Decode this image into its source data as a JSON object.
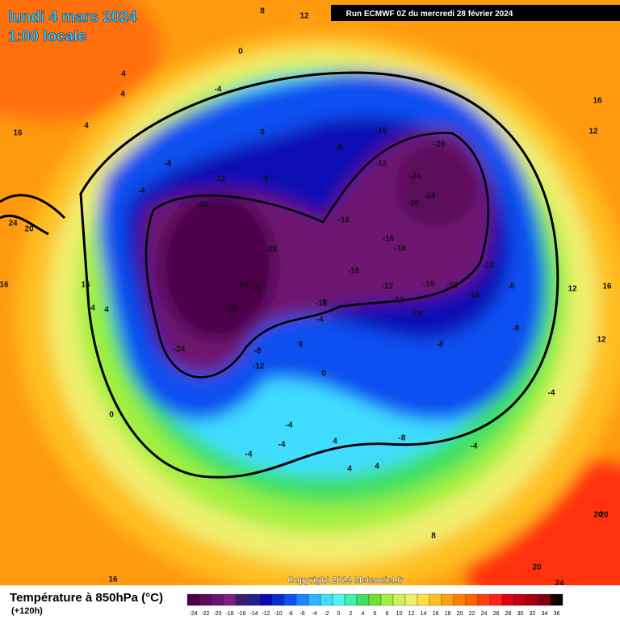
{
  "header": {
    "date": "lundi 4 mars 2024",
    "time": "1:00 locale",
    "run": "Run ECMWF 0Z du mercredi 28 février 2024"
  },
  "copyright": "Copyright 2024 Meteociel.fr",
  "footer": {
    "title": "Température à 850hPa (°C)",
    "lead": "(+120h)"
  },
  "legend": {
    "labels": [
      -24,
      -22,
      -20,
      -18,
      -16,
      -14,
      -12,
      -10,
      -8,
      -6,
      -4,
      -2,
      0,
      2,
      4,
      6,
      8,
      10,
      12,
      14,
      16,
      18,
      20,
      22,
      24,
      26,
      28,
      30,
      32,
      34,
      36
    ],
    "colors": [
      "#4a0046",
      "#5c0a5a",
      "#6e1470",
      "#801e84",
      "#3a1e6a",
      "#23208c",
      "#0a0ab4",
      "#0a2ad2",
      "#1050f0",
      "#2084ff",
      "#30b4ff",
      "#40dcff",
      "#50f4f0",
      "#40f0b0",
      "#40e060",
      "#70e030",
      "#a0f040",
      "#d0f060",
      "#f0f070",
      "#ffe040",
      "#ffc020",
      "#ffa010",
      "#ff8000",
      "#ff6000",
      "#ff4010",
      "#ff2020",
      "#e00010",
      "#c00010",
      "#a00010",
      "#800010",
      "#100000"
    ]
  },
  "contour_labels": [
    8,
    12,
    0,
    -4,
    4,
    4,
    4,
    16,
    24,
    20,
    16,
    -4,
    0,
    -8,
    -8,
    -12,
    -24,
    -28,
    -24,
    -20,
    -28,
    -24,
    -8,
    -12,
    -16,
    -12,
    -8,
    -16,
    -20,
    -24,
    -24,
    -20,
    -16,
    -16,
    -16,
    -12,
    -16,
    -16,
    -16,
    -12,
    -16,
    -12,
    -8,
    -8,
    -8,
    -4,
    0,
    0,
    -4,
    -4,
    -4,
    -8,
    4,
    4,
    8,
    0,
    4,
    8,
    12,
    16,
    12,
    12,
    16,
    16,
    20,
    20,
    20,
    -4,
    -4,
    16,
    24,
    4,
    4,
    -12
  ]
}
